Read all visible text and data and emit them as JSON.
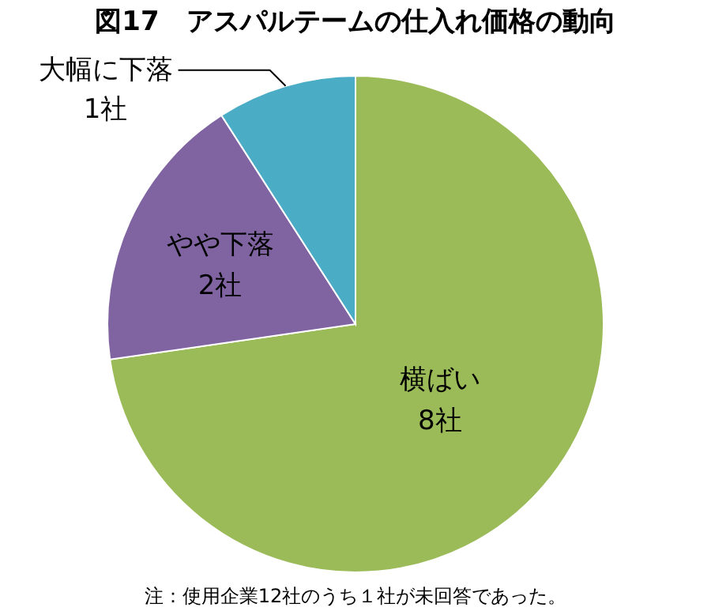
{
  "chart_data": {
    "type": "pie",
    "title": "図17　アスパルテームの仕入れ価格の動向",
    "categories": [
      "横ばい",
      "やや下落",
      "大幅に下落"
    ],
    "values": [
      8,
      2,
      1
    ],
    "value_labels": [
      "8社",
      "2社",
      "1社"
    ],
    "colors": [
      "#9bbb59",
      "#8064a2",
      "#4bacc6"
    ],
    "annotations": [
      "注：使用企業12社のうち１社が未回答であった。"
    ]
  }
}
